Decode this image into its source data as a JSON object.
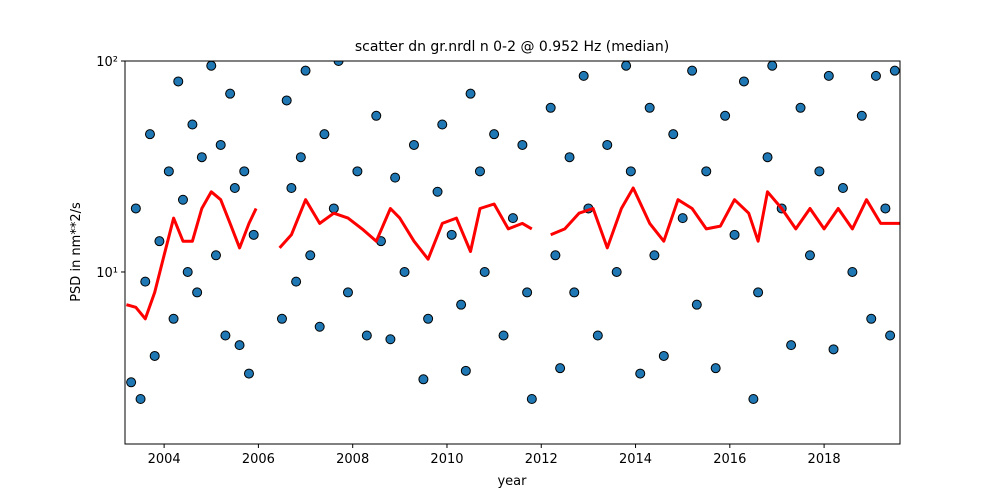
{
  "chart_data": {
    "type": "scatter",
    "title": "scatter dn gr.nrdl n 0-2 @ 0.952 Hz (median)",
    "x_label": "year",
    "y_label": "PSD in nm**2/s",
    "xlim": [
      2003.17,
      2019.61
    ],
    "xticks": [
      2004,
      2006,
      2008,
      2010,
      2012,
      2014,
      2016,
      2018
    ],
    "ylim": [
      1.53,
      100
    ],
    "yscale": "log",
    "yticks": [
      {
        "value": 10,
        "label": "10¹"
      },
      {
        "value": 100,
        "label": "10²"
      }
    ],
    "series": [
      {
        "type": "scatter",
        "color": "#1f77b4",
        "x": [
          2003.3,
          2003.4,
          2003.5,
          2003.6,
          2003.7,
          2003.8,
          2003.9,
          2004.1,
          2004.2,
          2004.3,
          2004.4,
          2004.5,
          2004.6,
          2004.7,
          2004.8,
          2005.0,
          2005.1,
          2005.2,
          2005.3,
          2005.4,
          2005.5,
          2005.6,
          2005.7,
          2005.8,
          2005.9,
          2006.5,
          2006.6,
          2006.7,
          2006.8,
          2006.9,
          2007.0,
          2007.1,
          2007.3,
          2007.4,
          2007.6,
          2007.7,
          2007.9,
          2008.1,
          2008.3,
          2008.5,
          2008.6,
          2008.8,
          2008.9,
          2009.1,
          2009.3,
          2009.5,
          2009.6,
          2009.8,
          2009.9,
          2010.1,
          2010.3,
          2010.4,
          2010.5,
          2010.7,
          2010.8,
          2011.0,
          2011.2,
          2011.4,
          2011.6,
          2011.7,
          2011.8,
          2012.2,
          2012.3,
          2012.4,
          2012.6,
          2012.7,
          2012.9,
          2013.0,
          2013.2,
          2013.4,
          2013.6,
          2013.8,
          2013.9,
          2014.1,
          2014.3,
          2014.4,
          2014.6,
          2014.8,
          2015.0,
          2015.2,
          2015.3,
          2015.5,
          2015.7,
          2015.9,
          2016.1,
          2016.3,
          2016.5,
          2016.6,
          2016.8,
          2016.9,
          2017.1,
          2017.3,
          2017.5,
          2017.7,
          2017.9,
          2018.1,
          2018.2,
          2018.4,
          2018.6,
          2018.8,
          2019.0,
          2019.1,
          2019.3,
          2019.4,
          2019.5
        ],
        "values": [
          3,
          20,
          2.5,
          9,
          45,
          4,
          14,
          30,
          6,
          80,
          22,
          10,
          50,
          8,
          35,
          95,
          12,
          40,
          5,
          70,
          25,
          4.5,
          30,
          3.3,
          15,
          6,
          65,
          25,
          9,
          35,
          90,
          12,
          5.5,
          45,
          20,
          100,
          8,
          30,
          5,
          55,
          14,
          4.8,
          28,
          10,
          40,
          3.1,
          6,
          24,
          50,
          15,
          7,
          3.4,
          70,
          30,
          10,
          45,
          5,
          18,
          40,
          8,
          2.5,
          60,
          12,
          3.5,
          35,
          8,
          85,
          20,
          5,
          40,
          10,
          95,
          30,
          3.3,
          60,
          12,
          4,
          45,
          18,
          90,
          7,
          30,
          3.5,
          55,
          15,
          80,
          2.5,
          8,
          35,
          95,
          20,
          4.5,
          60,
          12,
          30,
          85,
          4.3,
          25,
          10,
          55,
          6,
          85,
          20,
          5,
          90
        ]
      },
      {
        "type": "line",
        "color": "#ff0000",
        "x": [
          2003.2,
          2003.4,
          2003.6,
          2003.8,
          2004.0,
          2004.2,
          2004.4,
          2004.6,
          2004.8,
          2005.0,
          2005.2,
          2005.4,
          2005.6,
          2005.8,
          2005.95,
          2006.2,
          2006.45,
          2006.7,
          2007.0,
          2007.3,
          2007.6,
          2007.9,
          2008.2,
          2008.5,
          2008.8,
          2009.0,
          2009.3,
          2009.6,
          2009.9,
          2010.2,
          2010.5,
          2010.7,
          2011.0,
          2011.3,
          2011.6,
          2011.8,
          2012.0,
          2012.2,
          2012.5,
          2012.8,
          2013.1,
          2013.4,
          2013.7,
          2013.95,
          2014.3,
          2014.6,
          2014.9,
          2015.2,
          2015.5,
          2015.8,
          2016.1,
          2016.4,
          2016.6,
          2016.8,
          2017.1,
          2017.4,
          2017.7,
          2018.0,
          2018.3,
          2018.6,
          2018.9,
          2019.2,
          2019.6
        ],
        "values": [
          7,
          6.8,
          6,
          8,
          12,
          18,
          14,
          14,
          20,
          24,
          22,
          17,
          13,
          17,
          20,
          null,
          13,
          15,
          22,
          17,
          19,
          18,
          16,
          14,
          20,
          18,
          14,
          11.5,
          17,
          18,
          12.5,
          20,
          21,
          16,
          17,
          16,
          null,
          15,
          16,
          19,
          20,
          13,
          20,
          25,
          17,
          14,
          22,
          20,
          16,
          16.5,
          22,
          19,
          14,
          24,
          20,
          16,
          20,
          16,
          20,
          16,
          22,
          17,
          17
        ]
      }
    ]
  }
}
